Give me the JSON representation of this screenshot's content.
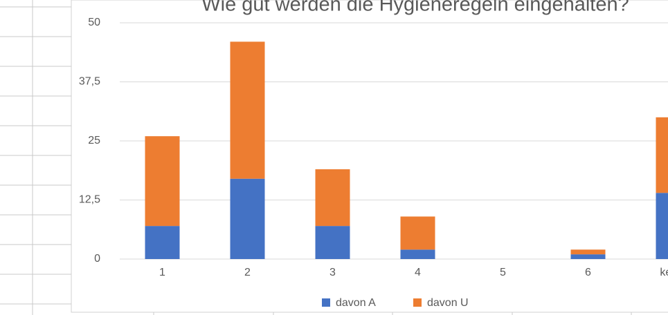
{
  "chart_data": {
    "type": "stacked_bar",
    "title": "Wie gut werden die Hygieneregeln eingehalten?",
    "categories": [
      "1",
      "2",
      "3",
      "4",
      "5",
      "6",
      "keine"
    ],
    "series": [
      {
        "name": "davon A",
        "color": "#4472c4",
        "values": [
          7,
          17,
          7,
          2,
          0,
          1,
          14
        ]
      },
      {
        "name": "davon U",
        "color": "#ed7d31",
        "values": [
          19,
          29,
          12,
          7,
          0,
          1,
          16
        ]
      }
    ],
    "ylim": [
      0,
      50
    ],
    "yticks": [
      0,
      {
        "value": 12.5,
        "label": "12,5"
      },
      25,
      {
        "value": 37.5,
        "label": "37,5"
      },
      50
    ],
    "grid": true,
    "legend": "bottom"
  }
}
